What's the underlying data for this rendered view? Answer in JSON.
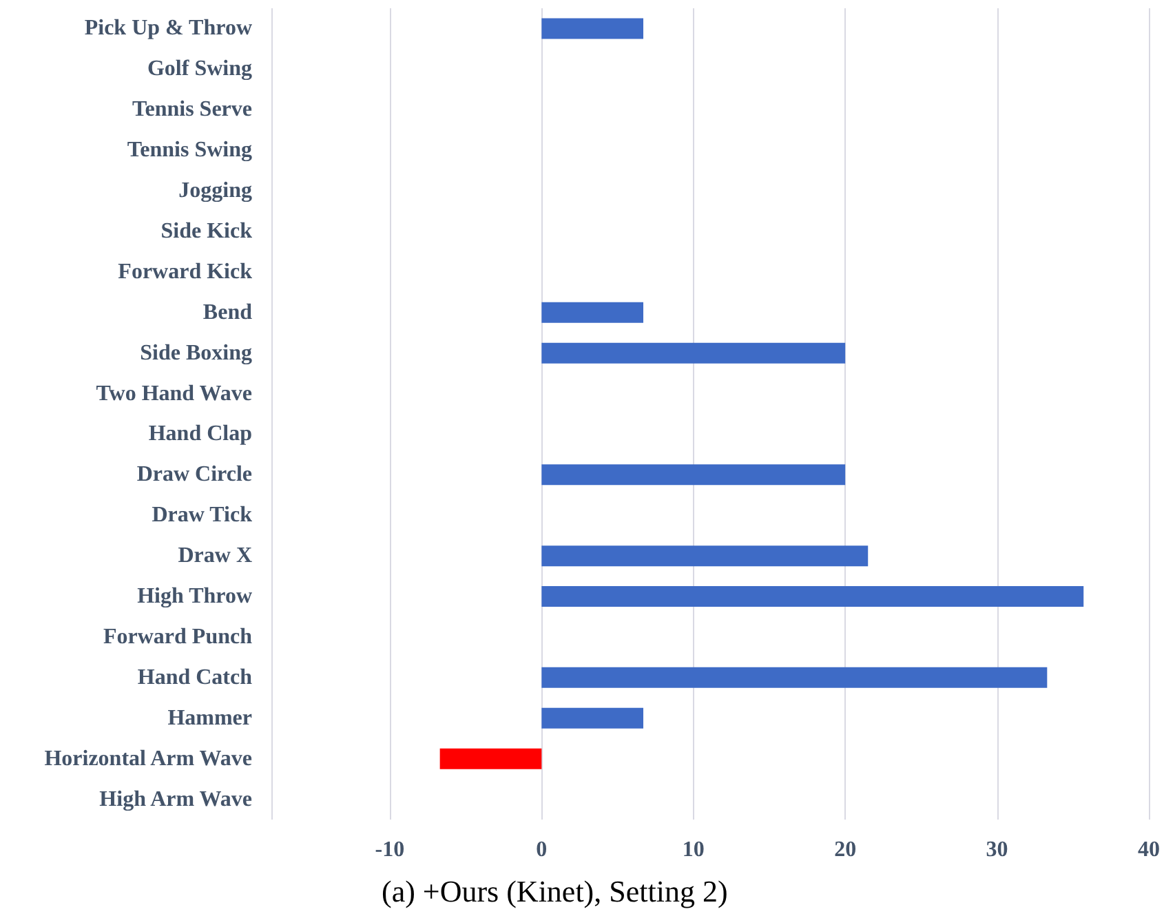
{
  "chart_data": {
    "type": "bar",
    "orientation": "horizontal",
    "title": "(a) +Ours (Kinet), Setting 2)",
    "categories": [
      "Pick Up & Throw",
      "Golf Swing",
      "Tennis Serve",
      "Tennis Swing",
      "Jogging",
      "Side Kick",
      "Forward Kick",
      "Bend",
      "Side Boxing",
      "Two Hand Wave",
      "Hand Clap",
      "Draw Circle",
      "Draw Tick",
      "Draw X",
      "High Throw",
      "Forward Punch",
      "Hand Catch",
      "Hammer",
      "Horizontal Arm Wave",
      "High Arm Wave"
    ],
    "values": [
      6.7,
      0,
      0,
      0,
      0,
      0,
      0,
      6.7,
      20,
      0,
      0,
      20,
      0,
      21.5,
      35.7,
      0,
      33.3,
      6.7,
      -6.7,
      0
    ],
    "colors": [
      "#3e6bc6",
      "#3e6bc6",
      "#3e6bc6",
      "#3e6bc6",
      "#3e6bc6",
      "#3e6bc6",
      "#3e6bc6",
      "#3e6bc6",
      "#3e6bc6",
      "#3e6bc6",
      "#3e6bc6",
      "#3e6bc6",
      "#3e6bc6",
      "#3e6bc6",
      "#3e6bc6",
      "#3e6bc6",
      "#3e6bc6",
      "#3e6bc6",
      "#ff0000",
      "#3e6bc6"
    ],
    "xlim": [
      -17.8,
      40
    ],
    "xticks": [
      {
        "value": -17.8,
        "label": null
      },
      -10,
      0,
      10,
      20,
      30,
      40
    ],
    "grid": "x"
  }
}
